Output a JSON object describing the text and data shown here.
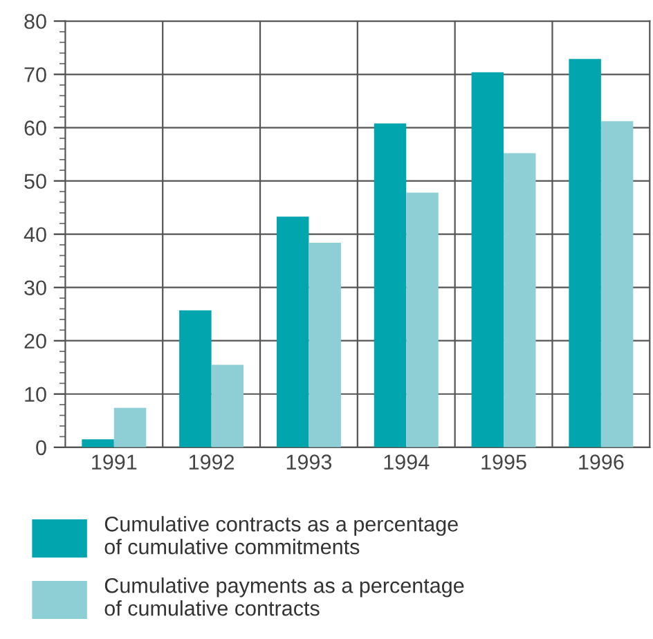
{
  "chart_data": {
    "type": "bar",
    "categories": [
      "1991",
      "1992",
      "1993",
      "1994",
      "1995",
      "1996"
    ],
    "series": [
      {
        "name": "Cumulative contracts as a percentage\nof cumulative commitments",
        "color": "#00a5ad",
        "values": [
          1.5,
          25.7,
          43.3,
          60.8,
          70.4,
          72.9
        ]
      },
      {
        "name": "Cumulative payments as a percentage\nof cumulative contracts",
        "color": "#8ecfd6",
        "values": [
          7.4,
          15.5,
          38.4,
          47.8,
          55.2,
          61.2
        ]
      }
    ],
    "ylim": [
      0,
      80
    ],
    "yticks": [
      0,
      10,
      20,
      30,
      40,
      50,
      60,
      70,
      80
    ],
    "grid": true,
    "legend": "bottom"
  }
}
